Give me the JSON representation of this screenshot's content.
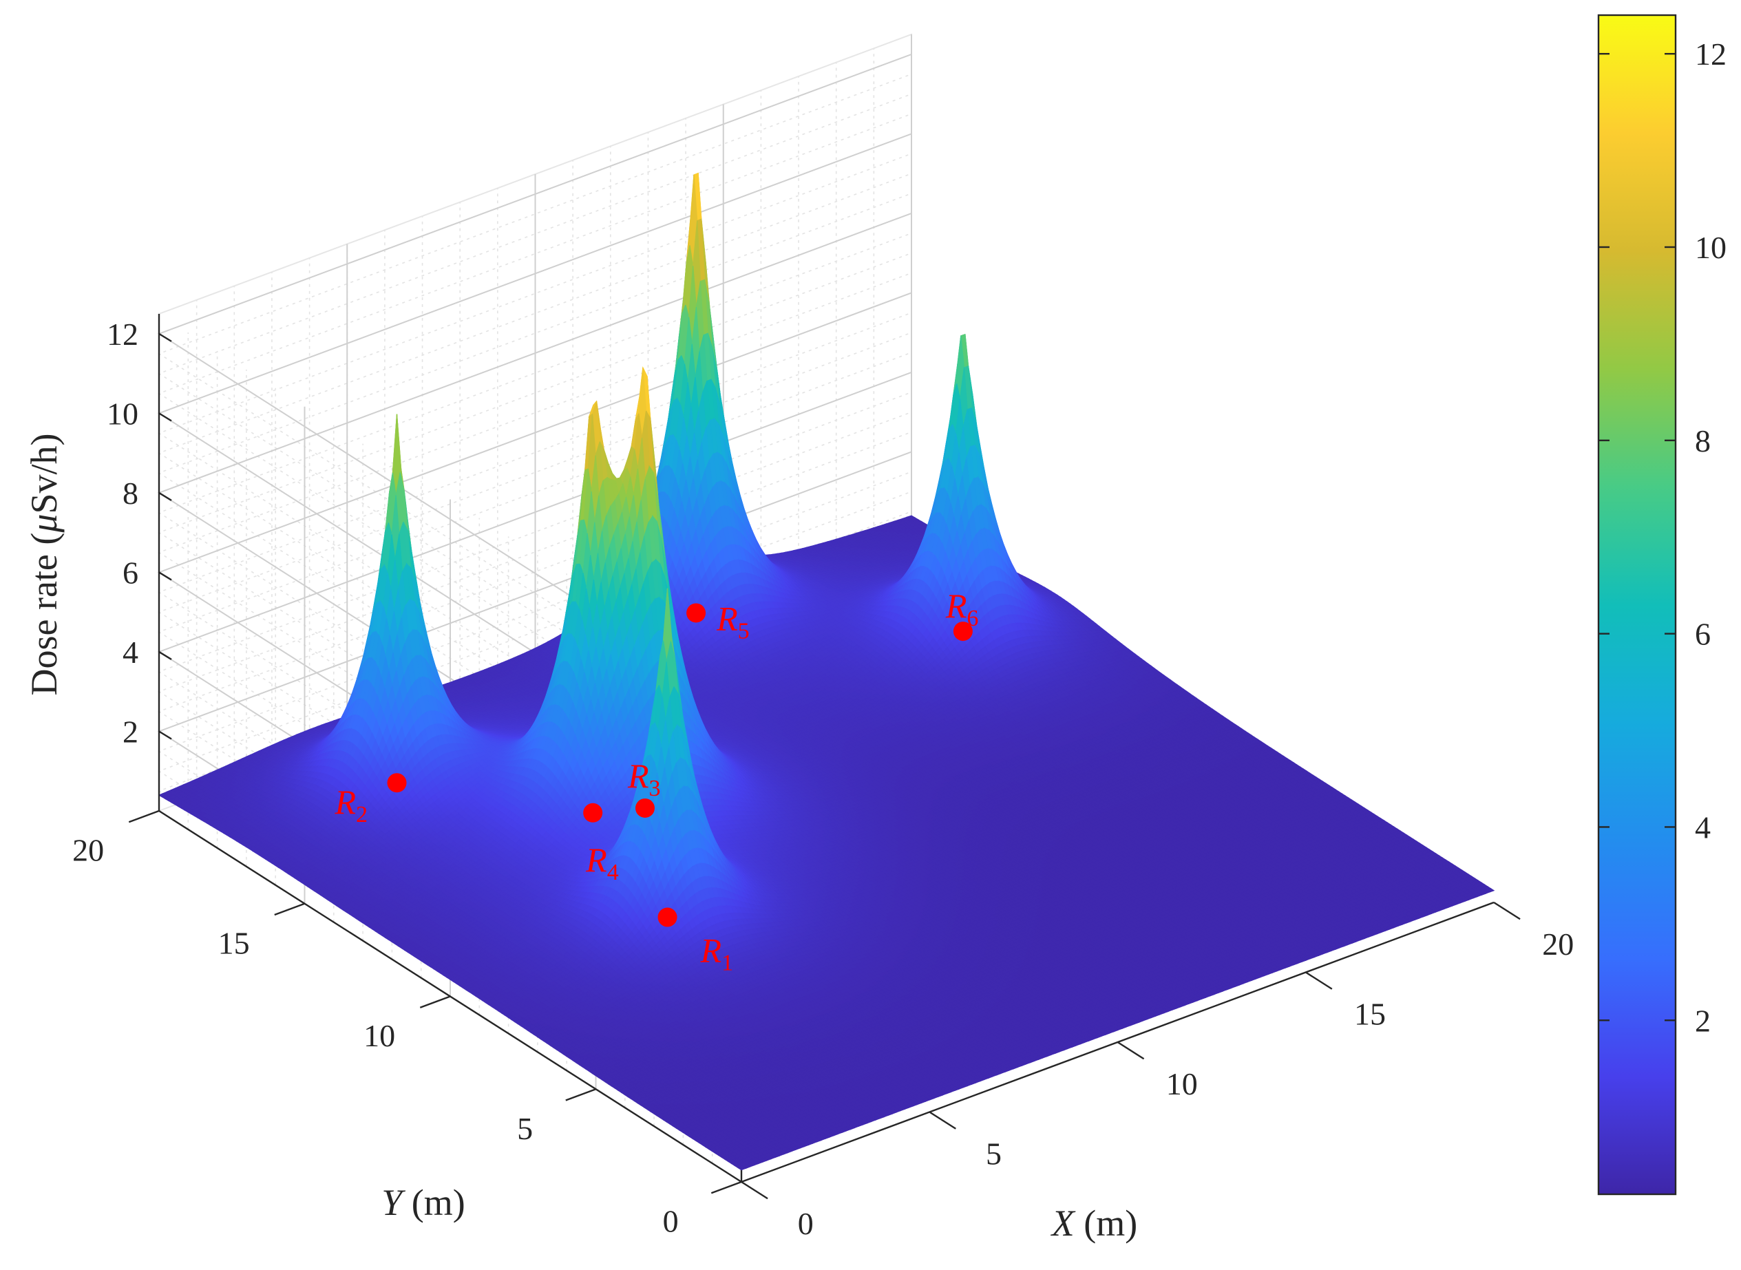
{
  "chart_data": {
    "type": "surface3d",
    "title": "",
    "xlabel": {
      "var": "X",
      "unit": " (m)"
    },
    "ylabel": {
      "var": "Y",
      "unit": " (m)"
    },
    "zlabel": {
      "pre": "Dose rate (",
      "mu": "μ",
      "post": "Sv/h)"
    },
    "x_ticks": [
      "0",
      "5",
      "10",
      "15",
      "20"
    ],
    "y_ticks": [
      "0",
      "5",
      "10",
      "15",
      "20"
    ],
    "z_ticks": [
      "2",
      "4",
      "6",
      "8",
      "10",
      "12"
    ],
    "xlim": [
      0,
      20
    ],
    "ylim": [
      0,
      20
    ],
    "zlim": [
      0,
      12.5
    ],
    "grid": true,
    "colormap": "parula",
    "colorbar": {
      "range": [
        0.2,
        12.4
      ],
      "ticks": [
        "2",
        "4",
        "6",
        "8",
        "10",
        "12"
      ],
      "placement": "right"
    },
    "baseline_dose": 0.3,
    "sources": [
      {
        "letter": "R",
        "sub": "1",
        "x": 5.0,
        "y": 9.0,
        "peak": 8.4
      },
      {
        "letter": "R",
        "sub": "2",
        "x": 4.0,
        "y": 17.0,
        "peak": 9.4
      },
      {
        "letter": "R",
        "sub": "3",
        "x": 7.5,
        "y": 13.0,
        "peak": 10.0
      },
      {
        "letter": "R",
        "sub": "4",
        "x": 6.5,
        "y": 13.5,
        "peak": 9.2
      },
      {
        "letter": "R",
        "sub": "5",
        "x": 13.5,
        "y": 19.0,
        "peak": 12.3
      },
      {
        "letter": "R",
        "sub": "6",
        "x": 17.5,
        "y": 15.0,
        "peak": 8.4
      }
    ],
    "marker_color": "#ff0000"
  }
}
